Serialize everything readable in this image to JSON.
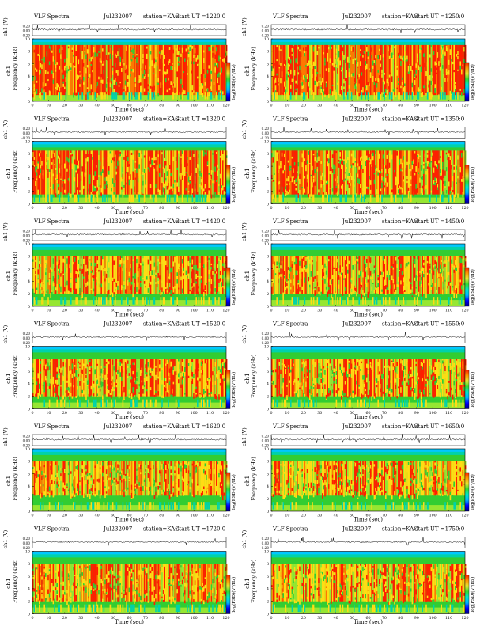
{
  "header": {
    "prefix": "VLF Spectra",
    "station": "station=KAG"
  },
  "axes": {
    "time_label": "Time (sec)",
    "freq_label": "Frequency (kHz)",
    "ch_label": "ch1",
    "amp_label": "ch1 (V)",
    "colorbar_label": "log(PSD)(V²/Hz)",
    "x_ticks": [
      "0",
      "10",
      "20",
      "30",
      "40",
      "50",
      "60",
      "70",
      "80",
      "90",
      "100",
      "110",
      "120"
    ],
    "y_ticks": [
      "0",
      "2",
      "4",
      "6",
      "8",
      "10"
    ],
    "amp_ticks": [
      "0.20",
      "0.00",
      "-0.20"
    ]
  },
  "colorbar_stops": [
    "#000080",
    "#0000ff",
    "#00b4ff",
    "#00e6c8",
    "#32dc32",
    "#e6e632",
    "#ff9600",
    "#ff1e00"
  ],
  "chart_data": [
    {
      "type": "heatmap",
      "date": "Jul232007",
      "start_label": "start UT =1220:0",
      "xlim": [
        0,
        120
      ],
      "ylim": [
        0,
        10
      ],
      "x_ticks": [
        0,
        10,
        20,
        30,
        40,
        50,
        60,
        70,
        80,
        90,
        100,
        110,
        120
      ],
      "y_ticks": [
        0,
        2,
        4,
        6,
        8,
        10
      ],
      "band_khz": [
        1,
        9
      ],
      "intensity": "high"
    },
    {
      "type": "heatmap",
      "date": "Jul232007",
      "start_label": "start UT =1250:0",
      "xlim": [
        0,
        120
      ],
      "ylim": [
        0,
        10
      ],
      "x_ticks": [
        0,
        10,
        20,
        30,
        40,
        50,
        60,
        70,
        80,
        90,
        100,
        110,
        120
      ],
      "y_ticks": [
        0,
        2,
        4,
        6,
        8,
        10
      ],
      "band_khz": [
        1,
        9
      ],
      "intensity": "high"
    },
    {
      "type": "heatmap",
      "date": "Jul232007",
      "start_label": "start UT =1320:0",
      "xlim": [
        0,
        120
      ],
      "ylim": [
        0,
        10
      ],
      "x_ticks": [
        0,
        10,
        20,
        30,
        40,
        50,
        60,
        70,
        80,
        90,
        100,
        110,
        120
      ],
      "y_ticks": [
        0,
        2,
        4,
        6,
        8,
        10
      ],
      "band_khz": [
        1.5,
        8.5
      ],
      "intensity": "medium-high"
    },
    {
      "type": "heatmap",
      "date": "Jul232007",
      "start_label": "start UT =1350:0",
      "xlim": [
        0,
        120
      ],
      "ylim": [
        0,
        10
      ],
      "x_ticks": [
        0,
        10,
        20,
        30,
        40,
        50,
        60,
        70,
        80,
        90,
        100,
        110,
        120
      ],
      "y_ticks": [
        0,
        2,
        4,
        6,
        8,
        10
      ],
      "band_khz": [
        1.5,
        8.5
      ],
      "intensity": "medium-high"
    },
    {
      "type": "heatmap",
      "date": "Jul232007",
      "start_label": "start UT =1420:0",
      "xlim": [
        0,
        120
      ],
      "ylim": [
        0,
        10
      ],
      "x_ticks": [
        0,
        10,
        20,
        30,
        40,
        50,
        60,
        70,
        80,
        90,
        100,
        110,
        120
      ],
      "y_ticks": [
        0,
        2,
        4,
        6,
        8,
        10
      ],
      "band_khz": [
        2,
        8
      ],
      "intensity": "medium"
    },
    {
      "type": "heatmap",
      "date": "Jul232007",
      "start_label": "start UT =1450:0",
      "xlim": [
        0,
        120
      ],
      "ylim": [
        0,
        10
      ],
      "x_ticks": [
        0,
        10,
        20,
        30,
        40,
        50,
        60,
        70,
        80,
        90,
        100,
        110,
        120
      ],
      "y_ticks": [
        0,
        2,
        4,
        6,
        8,
        10
      ],
      "band_khz": [
        2,
        8
      ],
      "intensity": "medium"
    },
    {
      "type": "heatmap",
      "date": "Jul232007",
      "start_label": "start UT =1520:0",
      "xlim": [
        0,
        120
      ],
      "ylim": [
        0,
        10
      ],
      "x_ticks": [
        0,
        10,
        20,
        30,
        40,
        50,
        60,
        70,
        80,
        90,
        100,
        110,
        120
      ],
      "y_ticks": [
        0,
        2,
        4,
        6,
        8,
        10
      ],
      "band_khz": [
        2,
        8
      ],
      "intensity": "medium"
    },
    {
      "type": "heatmap",
      "date": "Jul232007",
      "start_label": "start UT =1550:0",
      "xlim": [
        0,
        120
      ],
      "ylim": [
        0,
        10
      ],
      "x_ticks": [
        0,
        10,
        20,
        30,
        40,
        50,
        60,
        70,
        80,
        90,
        100,
        110,
        120
      ],
      "y_ticks": [
        0,
        2,
        4,
        6,
        8,
        10
      ],
      "band_khz": [
        2,
        8
      ],
      "intensity": "medium"
    },
    {
      "type": "heatmap",
      "date": "Jul232007",
      "start_label": "start UT =1620:0",
      "xlim": [
        0,
        120
      ],
      "ylim": [
        0,
        10
      ],
      "x_ticks": [
        0,
        10,
        20,
        30,
        40,
        50,
        60,
        70,
        80,
        90,
        100,
        110,
        120
      ],
      "y_ticks": [
        0,
        2,
        4,
        6,
        8,
        10
      ],
      "band_khz": [
        2.5,
        8
      ],
      "intensity": "medium-low"
    },
    {
      "type": "heatmap",
      "date": "Jul232007",
      "start_label": "start UT =1650:0",
      "xlim": [
        0,
        120
      ],
      "ylim": [
        0,
        10
      ],
      "x_ticks": [
        0,
        10,
        20,
        30,
        40,
        50,
        60,
        70,
        80,
        90,
        100,
        110,
        120
      ],
      "y_ticks": [
        0,
        2,
        4,
        6,
        8,
        10
      ],
      "band_khz": [
        2.5,
        8
      ],
      "intensity": "medium-low"
    },
    {
      "type": "heatmap",
      "date": "Jul232007",
      "start_label": "start UT =1720:0",
      "xlim": [
        0,
        120
      ],
      "ylim": [
        0,
        10
      ],
      "x_ticks": [
        0,
        10,
        20,
        30,
        40,
        50,
        60,
        70,
        80,
        90,
        100,
        110,
        120
      ],
      "y_ticks": [
        0,
        2,
        4,
        6,
        8,
        10
      ],
      "band_khz": [
        2,
        8
      ],
      "intensity": "medium"
    },
    {
      "type": "heatmap",
      "date": "Jul232007",
      "start_label": "start UT =1750:0",
      "xlim": [
        0,
        120
      ],
      "ylim": [
        0,
        10
      ],
      "x_ticks": [
        0,
        10,
        20,
        30,
        40,
        50,
        60,
        70,
        80,
        90,
        100,
        110,
        120
      ],
      "y_ticks": [
        0,
        2,
        4,
        6,
        8,
        10
      ],
      "band_khz": [
        2,
        8
      ],
      "intensity": "medium"
    }
  ]
}
